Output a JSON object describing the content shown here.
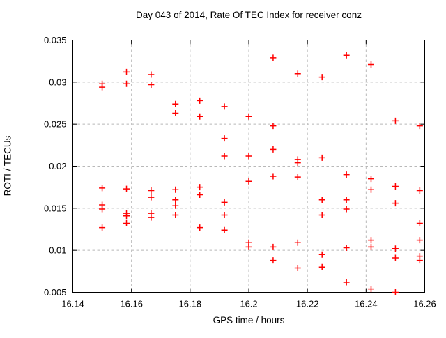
{
  "page": {
    "background": "#ffffff"
  },
  "chart_data": {
    "type": "scatter",
    "title": "Day 043 of 2014, Rate Of TEC Index for receiver conz",
    "xlabel": "GPS time / hours",
    "ylabel": "ROTI / TECUs",
    "xlim": [
      16.14,
      16.26
    ],
    "ylim": [
      0.005,
      0.035
    ],
    "x_ticks": [
      16.14,
      16.16,
      16.18,
      16.2,
      16.22,
      16.24,
      16.26
    ],
    "x_tick_labels": [
      "16.14",
      "16.16",
      "16.18",
      "16.2",
      "16.22",
      "16.24",
      "16.26"
    ],
    "y_ticks": [
      0.005,
      0.01,
      0.015,
      0.02,
      0.025,
      0.03,
      0.035
    ],
    "y_tick_labels": [
      "0.005",
      "0.01",
      "0.015",
      "0.02",
      "0.025",
      "0.03",
      "0.035"
    ],
    "grid": true,
    "legend_position": "none",
    "marker": {
      "shape": "plus",
      "color": "#ff0000",
      "size": 9,
      "stroke_width": 1.5
    },
    "frame_color": "#000000",
    "grid_color": "#b8b8b8",
    "series": [
      {
        "name": "ROTI",
        "points": [
          [
            16.15,
            0.0298
          ],
          [
            16.15,
            0.0294
          ],
          [
            16.15,
            0.0174
          ],
          [
            16.15,
            0.0154
          ],
          [
            16.15,
            0.0149
          ],
          [
            16.15,
            0.0127
          ],
          [
            16.1583,
            0.0312
          ],
          [
            16.1583,
            0.0298
          ],
          [
            16.1583,
            0.0173
          ],
          [
            16.1583,
            0.0144
          ],
          [
            16.1583,
            0.0141
          ],
          [
            16.1583,
            0.0132
          ],
          [
            16.1667,
            0.0309
          ],
          [
            16.1667,
            0.0297
          ],
          [
            16.1667,
            0.0171
          ],
          [
            16.1667,
            0.0163
          ],
          [
            16.1667,
            0.0144
          ],
          [
            16.1667,
            0.0139
          ],
          [
            16.175,
            0.0274
          ],
          [
            16.175,
            0.0263
          ],
          [
            16.175,
            0.0172
          ],
          [
            16.175,
            0.016
          ],
          [
            16.175,
            0.0153
          ],
          [
            16.175,
            0.0142
          ],
          [
            16.1833,
            0.0278
          ],
          [
            16.1833,
            0.0259
          ],
          [
            16.1833,
            0.0175
          ],
          [
            16.1833,
            0.0166
          ],
          [
            16.1833,
            0.0127
          ],
          [
            16.1917,
            0.0271
          ],
          [
            16.1917,
            0.0233
          ],
          [
            16.1917,
            0.0212
          ],
          [
            16.1917,
            0.0157
          ],
          [
            16.1917,
            0.0142
          ],
          [
            16.1917,
            0.0124
          ],
          [
            16.2,
            0.0259
          ],
          [
            16.2,
            0.0212
          ],
          [
            16.2,
            0.0182
          ],
          [
            16.2,
            0.0109
          ],
          [
            16.2,
            0.0104
          ],
          [
            16.2083,
            0.0329
          ],
          [
            16.2083,
            0.0248
          ],
          [
            16.2083,
            0.022
          ],
          [
            16.2083,
            0.0188
          ],
          [
            16.2083,
            0.0104
          ],
          [
            16.2083,
            0.0088
          ],
          [
            16.2167,
            0.031
          ],
          [
            16.2167,
            0.0208
          ],
          [
            16.2167,
            0.0204
          ],
          [
            16.2167,
            0.0187
          ],
          [
            16.2167,
            0.0109
          ],
          [
            16.2167,
            0.0079
          ],
          [
            16.225,
            0.0306
          ],
          [
            16.225,
            0.021
          ],
          [
            16.225,
            0.016
          ],
          [
            16.225,
            0.0142
          ],
          [
            16.225,
            0.0095
          ],
          [
            16.225,
            0.008
          ],
          [
            16.2333,
            0.0332
          ],
          [
            16.2333,
            0.019
          ],
          [
            16.2333,
            0.016
          ],
          [
            16.2333,
            0.0149
          ],
          [
            16.2333,
            0.0103
          ],
          [
            16.2333,
            0.0062
          ],
          [
            16.2417,
            0.0321
          ],
          [
            16.2417,
            0.0185
          ],
          [
            16.2417,
            0.0172
          ],
          [
            16.2417,
            0.0112
          ],
          [
            16.2417,
            0.0104
          ],
          [
            16.2417,
            0.0054
          ],
          [
            16.25,
            0.0254
          ],
          [
            16.25,
            0.0176
          ],
          [
            16.25,
            0.0156
          ],
          [
            16.25,
            0.0102
          ],
          [
            16.25,
            0.0091
          ],
          [
            16.25,
            0.005
          ],
          [
            16.2583,
            0.0248
          ],
          [
            16.2583,
            0.0171
          ],
          [
            16.2583,
            0.0132
          ],
          [
            16.2583,
            0.0112
          ],
          [
            16.2583,
            0.0093
          ],
          [
            16.2583,
            0.0088
          ]
        ]
      }
    ]
  }
}
